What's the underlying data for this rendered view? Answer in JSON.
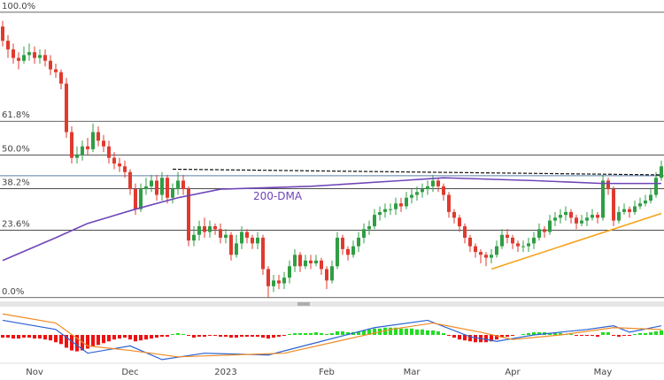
{
  "chart_data": [
    {
      "type": "candlestick",
      "categories": [
        null,
        null,
        null,
        null,
        null,
        null,
        "Nov",
        null,
        null,
        null,
        null,
        null,
        null,
        null,
        null,
        null,
        null,
        null,
        null,
        null,
        null,
        null,
        null,
        null,
        "Dec",
        null,
        null,
        null,
        null,
        null,
        null,
        null,
        null,
        null,
        null,
        null,
        null,
        null,
        null,
        null,
        null,
        null,
        "2023",
        null,
        null,
        null,
        null,
        null,
        null,
        null,
        null,
        null,
        null,
        null,
        null,
        null,
        null,
        null,
        null,
        null,
        null,
        "Feb",
        null,
        null,
        null,
        null,
        null,
        null,
        null,
        null,
        null,
        null,
        null,
        null,
        null,
        null,
        null,
        "Mar",
        null,
        null,
        null,
        null,
        null,
        null,
        null,
        null,
        null,
        null,
        null,
        null,
        null,
        null,
        null,
        null,
        null,
        null,
        "Apr",
        null,
        null,
        null,
        null,
        null,
        null,
        null,
        null,
        null,
        null,
        null,
        null,
        null,
        null,
        null,
        null,
        "May",
        null,
        null,
        null,
        null,
        null,
        null,
        null,
        null,
        null,
        null,
        null
      ],
      "open": [
        95,
        90,
        87,
        84,
        83,
        85,
        86,
        84,
        85,
        83,
        80,
        79,
        75,
        58,
        49,
        50,
        53,
        52,
        58,
        55,
        53,
        49,
        47,
        46,
        44,
        38,
        31,
        38,
        39,
        41,
        36,
        42,
        35,
        38,
        41,
        38,
        20,
        22,
        25,
        23,
        25,
        24,
        21,
        22,
        15,
        19,
        23,
        21,
        19,
        21,
        10,
        4,
        6,
        5,
        7,
        11,
        15,
        11,
        13,
        12,
        13,
        10,
        6,
        11,
        21,
        17,
        15,
        18,
        21,
        24,
        25,
        29,
        30,
        31,
        31,
        33,
        32,
        35,
        36,
        37,
        38,
        39,
        41,
        39,
        36,
        30,
        28,
        25,
        21,
        18,
        16,
        15,
        14,
        15,
        18,
        22,
        21,
        19,
        18,
        18,
        19,
        21,
        24,
        23,
        27,
        28,
        29,
        30,
        28,
        26,
        27,
        28,
        29,
        28,
        41,
        38,
        27,
        30,
        31,
        30,
        32,
        33,
        34,
        36,
        42
      ],
      "high": [
        97,
        92,
        89,
        86,
        88,
        89,
        88,
        87,
        87,
        85,
        82,
        80,
        77,
        60,
        53,
        55,
        56,
        61,
        60,
        57,
        55,
        51,
        49,
        48,
        45,
        40,
        40,
        42,
        43,
        43,
        44,
        43,
        40,
        44,
        43,
        39,
        25,
        27,
        28,
        27,
        26,
        26,
        24,
        23,
        22,
        25,
        24,
        22,
        23,
        22,
        11,
        8,
        8,
        9,
        13,
        17,
        16,
        15,
        15,
        15,
        14,
        11,
        13,
        23,
        22,
        18,
        20,
        23,
        26,
        27,
        31,
        32,
        33,
        33,
        35,
        35,
        37,
        38,
        39,
        40,
        41,
        43,
        42,
        40,
        37,
        31,
        29,
        26,
        22,
        19,
        17,
        16,
        17,
        20,
        24,
        24,
        22,
        20,
        20,
        21,
        23,
        26,
        25,
        29,
        30,
        31,
        32,
        31,
        29,
        29,
        30,
        31,
        30,
        43,
        42,
        39,
        32,
        33,
        32,
        34,
        35,
        36,
        38,
        44,
        48
      ],
      "low": [
        88,
        84,
        82,
        80,
        82,
        83,
        82,
        82,
        81,
        78,
        77,
        73,
        56,
        47,
        47,
        48,
        50,
        51,
        53,
        51,
        47,
        45,
        44,
        42,
        36,
        29,
        30,
        36,
        37,
        34,
        34,
        33,
        33,
        36,
        36,
        18,
        18,
        20,
        21,
        21,
        22,
        19,
        19,
        13,
        14,
        17,
        19,
        17,
        17,
        8,
        0,
        2,
        3,
        3,
        5,
        9,
        9,
        10,
        10,
        11,
        8,
        3,
        5,
        10,
        15,
        13,
        14,
        16,
        19,
        22,
        24,
        27,
        28,
        29,
        29,
        30,
        31,
        33,
        34,
        35,
        36,
        37,
        37,
        34,
        28,
        26,
        23,
        19,
        16,
        14,
        12,
        11,
        12,
        14,
        17,
        19,
        17,
        16,
        16,
        16,
        17,
        20,
        21,
        22,
        25,
        26,
        27,
        26,
        24,
        25,
        25,
        27,
        26,
        27,
        36,
        25,
        26,
        29,
        28,
        29,
        31,
        32,
        33,
        35,
        41
      ],
      "close": [
        90,
        87,
        84,
        83,
        85,
        86,
        84,
        85,
        83,
        80,
        79,
        75,
        58,
        49,
        50,
        53,
        52,
        58,
        55,
        53,
        49,
        47,
        46,
        44,
        38,
        31,
        38,
        39,
        41,
        36,
        42,
        35,
        38,
        41,
        38,
        20,
        22,
        25,
        23,
        25,
        24,
        21,
        22,
        15,
        19,
        23,
        21,
        19,
        21,
        10,
        4,
        6,
        5,
        7,
        11,
        15,
        11,
        13,
        12,
        13,
        10,
        6,
        11,
        21,
        17,
        15,
        18,
        21,
        24,
        25,
        29,
        30,
        31,
        31,
        33,
        32,
        35,
        36,
        37,
        38,
        39,
        41,
        39,
        36,
        30,
        28,
        25,
        21,
        18,
        16,
        15,
        14,
        15,
        18,
        22,
        21,
        19,
        18,
        18,
        19,
        21,
        24,
        23,
        27,
        28,
        29,
        30,
        28,
        26,
        27,
        28,
        29,
        28,
        41,
        38,
        27,
        30,
        31,
        30,
        32,
        33,
        34,
        36,
        42,
        46
      ],
      "up_color": "#2f9e44",
      "down_color": "#e03a2f",
      "ylim": [
        -1,
        104.3
      ],
      "yticks": [
        {
          "value": 100,
          "label": "100.0%"
        },
        {
          "value": 61.8,
          "label": "61.8%"
        },
        {
          "value": 50,
          "label": "50.0%"
        },
        {
          "value": 38.2,
          "label": "38.2%"
        },
        {
          "value": 23.6,
          "label": "23.6%"
        },
        {
          "value": 0,
          "label": "0.0%"
        }
      ],
      "overlays": [
        {
          "type": "line",
          "name": "200-DMA",
          "color": "#6f45b8",
          "x": [
            0,
            10,
            16,
            25,
            33,
            41,
            58,
            75,
            83,
            100,
            113,
            124
          ],
          "values": [
            13,
            21,
            26,
            31,
            35,
            38,
            39,
            41,
            42,
            41,
            40,
            40
          ]
        },
        {
          "type": "dashed",
          "color": "#111111",
          "x": [
            32,
            124
          ],
          "values": [
            45,
            43
          ]
        },
        {
          "type": "hline",
          "color": "#5b7fa6",
          "value": 42.7
        },
        {
          "type": "line",
          "color": "#f5a31a",
          "x": [
            92,
            124
          ],
          "values": [
            10,
            29.5
          ]
        }
      ]
    },
    {
      "type": "macd",
      "ylim": [
        -30,
        30
      ],
      "histogram": [
        -3,
        -3,
        -4,
        -4,
        -3,
        -3,
        -4,
        -4,
        -5,
        -6,
        -8,
        -10,
        -14,
        -17,
        -18,
        -17,
        -15,
        -13,
        -11,
        -9,
        -7,
        -5,
        -4,
        -3,
        -5,
        -7,
        -6,
        -5,
        -4,
        -3,
        -2,
        -2,
        1,
        2,
        1,
        -1,
        -3,
        -2,
        -2,
        -1,
        -1,
        -2,
        -2,
        -3,
        -3,
        -2,
        -2,
        -2,
        -2,
        -3,
        -4,
        -3,
        -2,
        -1,
        1,
        2,
        2,
        2,
        2,
        3,
        2,
        1,
        2,
        4,
        4,
        3,
        3,
        4,
        5,
        6,
        7,
        7,
        8,
        8,
        8,
        7,
        7,
        7,
        6,
        6,
        5,
        5,
        4,
        2,
        -1,
        -3,
        -5,
        -6,
        -7,
        -8,
        -8,
        -8,
        -7,
        -5,
        -3,
        -2,
        -1,
        0,
        1,
        2,
        3,
        3,
        3,
        2,
        2,
        2,
        1,
        1,
        -1,
        -1,
        -1,
        -1,
        -2,
        3,
        3,
        -1,
        -2,
        -1,
        -1,
        1,
        2,
        2,
        3,
        4,
        5
      ],
      "up_color": "#22dd22",
      "down_color": "#ee1111",
      "lines": [
        {
          "color": "#2a62d4",
          "x": [
            0,
            10,
            16,
            24,
            30,
            38,
            50,
            60,
            70,
            80,
            88,
            93,
            100,
            110,
            115,
            118,
            124
          ],
          "values": [
            16,
            6,
            -20,
            -12,
            -27,
            -20,
            -22,
            -7,
            8,
            16,
            -2,
            -7,
            0,
            6,
            10,
            3,
            10
          ]
        },
        {
          "color": "#f08a24",
          "x": [
            0,
            10,
            16,
            24,
            33,
            43,
            53,
            63,
            73,
            81,
            90,
            96,
            105,
            115,
            124
          ],
          "values": [
            23,
            13,
            -12,
            -17,
            -24,
            -22,
            -20,
            -7,
            6,
            13,
            3,
            -5,
            0,
            8,
            6
          ]
        }
      ]
    }
  ]
}
